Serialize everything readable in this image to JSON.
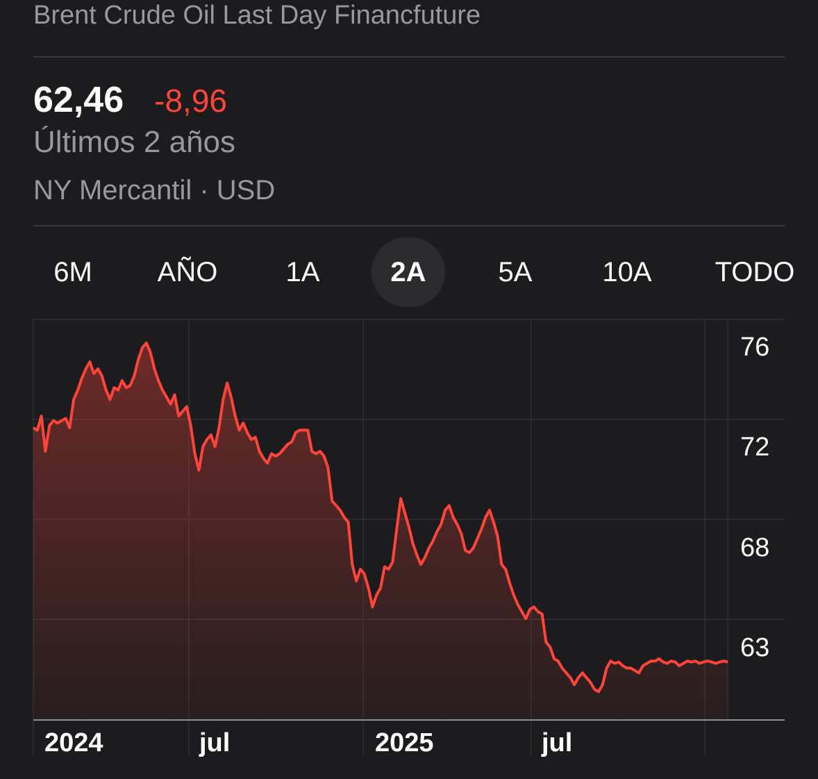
{
  "header": {
    "title": "Brent Crude Oil Last Day Financfuture",
    "price": "62,46",
    "change": "-8,96",
    "period": "Últimos 2 años",
    "exchange": "NY Mercantil · USD"
  },
  "colors": {
    "background": "#1c1c1e",
    "line": "#ff453a",
    "secondary_text": "#98989f",
    "active_tab": "#2c2c2e"
  },
  "range_tabs": [
    {
      "label": "6M",
      "active": false
    },
    {
      "label": "AÑO",
      "active": false
    },
    {
      "label": "1A",
      "active": false
    },
    {
      "label": "2A",
      "active": true
    },
    {
      "label": "5A",
      "active": false
    },
    {
      "label": "10A",
      "active": false
    },
    {
      "label": "TODO",
      "active": false
    }
  ],
  "chart_data": {
    "type": "area",
    "y_tick_labels": [
      "76",
      "72",
      "68",
      "63"
    ],
    "x_tick_labels": [
      "2024",
      "jul",
      "2025",
      "jul"
    ],
    "ylim": [
      60,
      77
    ],
    "series": [
      {
        "x": [
          0,
          1,
          2,
          3,
          4,
          5,
          6,
          7,
          8,
          9,
          10,
          11,
          12,
          13,
          14,
          15,
          16,
          17,
          18,
          19,
          20,
          21,
          22,
          23,
          24,
          25,
          26,
          27,
          28,
          29,
          30,
          31,
          32,
          33,
          34,
          35,
          36,
          37,
          38,
          39,
          40,
          41,
          42,
          43,
          44,
          45,
          46,
          47,
          48,
          49,
          50,
          51,
          52,
          53,
          54,
          55,
          56,
          57,
          58,
          59,
          60,
          61,
          62,
          63,
          64,
          65,
          66,
          67,
          68,
          69,
          70,
          71,
          72,
          73,
          74,
          75,
          76,
          77,
          78,
          79,
          80,
          81,
          82,
          83,
          84,
          85,
          86,
          87,
          88,
          89,
          90,
          91,
          92,
          93,
          94,
          95,
          96,
          97,
          98,
          99,
          100,
          101,
          102,
          103,
          104,
          105,
          106,
          107,
          108,
          109,
          110,
          111,
          112,
          113,
          114,
          115,
          116,
          117,
          118,
          119,
          120,
          121,
          122,
          123,
          124,
          125,
          126,
          127,
          128,
          129,
          130,
          131,
          132,
          133,
          134,
          135,
          136,
          137,
          138,
          139,
          140,
          141,
          142,
          143,
          144,
          145,
          146,
          147,
          148,
          149,
          150,
          151,
          152,
          153,
          154,
          155,
          156,
          157,
          158,
          159,
          160,
          161,
          162,
          163,
          164,
          165,
          166,
          167,
          168,
          169,
          170,
          171,
          172
        ],
        "values": [
          72.4,
          72.3,
          72.9,
          71.4,
          72.5,
          72.7,
          72.6,
          72.7,
          72.8,
          72.4,
          73.6,
          74.0,
          74.5,
          74.9,
          75.2,
          74.7,
          74.9,
          74.6,
          74.0,
          73.6,
          74.1,
          74.0,
          74.4,
          74.1,
          74.2,
          74.6,
          75.3,
          75.8,
          76.0,
          75.6,
          74.9,
          74.4,
          74.0,
          73.7,
          73.4,
          73.8,
          72.9,
          73.1,
          73.3,
          72.5,
          71.3,
          70.6,
          71.6,
          71.9,
          72.1,
          71.6,
          72.4,
          73.6,
          74.3,
          73.7,
          72.9,
          72.3,
          72.6,
          72.2,
          71.9,
          72.0,
          71.4,
          71.1,
          70.9,
          71.3,
          71.2,
          71.3,
          71.5,
          71.7,
          71.8,
          72.2,
          72.3,
          72.3,
          72.3,
          71.4,
          71.3,
          71.4,
          71.2,
          70.7,
          69.3,
          69.1,
          68.9,
          68.6,
          68.4,
          66.6,
          65.9,
          66.4,
          66.2,
          65.6,
          64.8,
          65.3,
          65.6,
          66.5,
          66.4,
          66.7,
          68.1,
          69.4,
          68.8,
          68.2,
          67.5,
          67.0,
          66.6,
          66.9,
          67.3,
          67.6,
          68.0,
          68.3,
          68.9,
          69.1,
          68.6,
          68.3,
          67.9,
          67.2,
          67.1,
          67.3,
          67.7,
          68.1,
          68.6,
          68.9,
          68.4,
          67.8,
          66.6,
          66.4,
          65.8,
          65.3,
          64.9,
          64.6,
          64.3,
          64.7,
          64.8,
          64.6,
          64.5,
          63.3,
          63.1,
          62.6,
          62.5,
          62.2,
          62.0,
          61.8,
          61.5,
          61.8,
          62.0,
          61.8,
          61.6,
          61.3,
          61.2,
          61.5,
          62.2,
          62.5,
          62.4,
          62.46,
          62.3,
          62.2,
          62.2,
          62.1,
          62.0,
          62.3,
          62.4,
          62.5,
          62.5,
          62.6,
          62.46,
          62.4,
          62.5,
          62.46,
          62.3,
          62.4,
          62.5,
          62.46,
          62.5,
          62.4,
          62.46,
          62.5,
          62.46,
          62.4,
          62.46,
          62.5,
          62.46
        ]
      }
    ]
  }
}
